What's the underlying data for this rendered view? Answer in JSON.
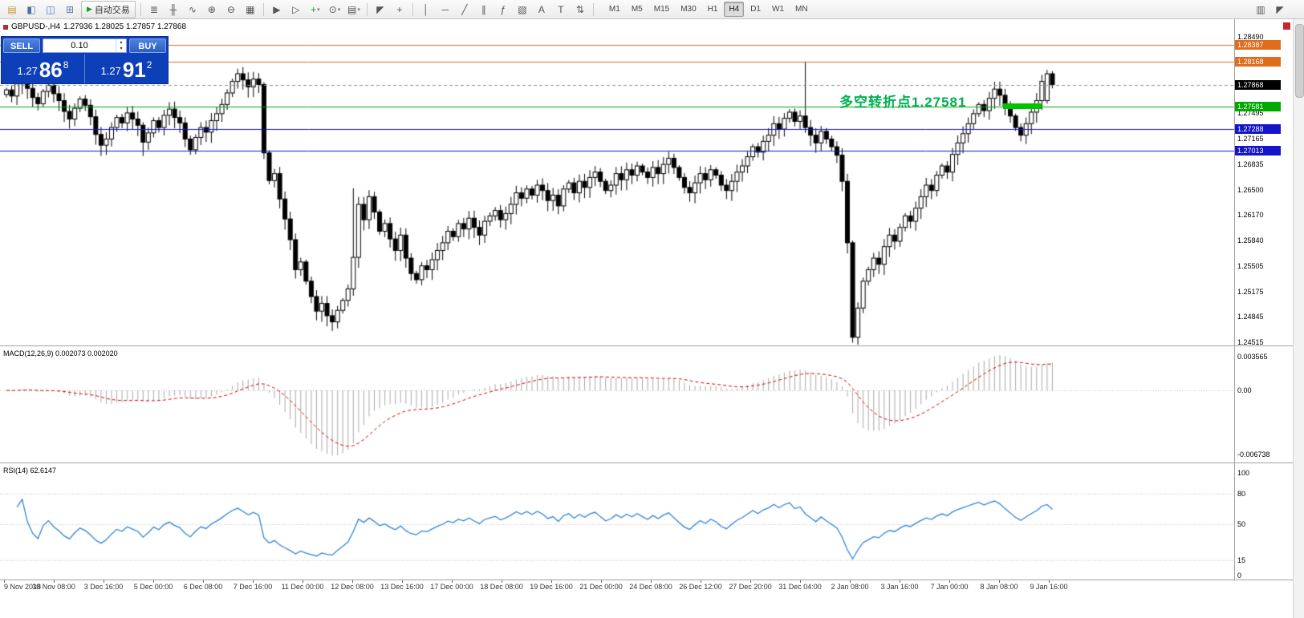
{
  "toolbar": {
    "auto_trading": {
      "label": "自动交易"
    },
    "groups": [
      {
        "items": [
          {
            "name": "new-order-icon",
            "glyph": "▤",
            "color": "#c09a2e"
          },
          {
            "name": "chart-window-icon",
            "glyph": "◧",
            "color": "#4a6fa5"
          },
          {
            "name": "profiles-icon",
            "glyph": "◫",
            "color": "#3b6fd1"
          },
          {
            "name": "data-window-icon",
            "glyph": "⊞",
            "color": "#5a7ab0"
          }
        ]
      },
      {
        "items": [
          {
            "name": "bar-chart-icon",
            "glyph": "≣"
          },
          {
            "name": "candlestick-chart-icon",
            "glyph": "╫"
          },
          {
            "name": "line-chart-icon",
            "glyph": "∿"
          },
          {
            "name": "zoom-in-icon",
            "glyph": "⊕"
          },
          {
            "name": "zoom-out-icon",
            "glyph": "⊖"
          },
          {
            "name": "tile-windows-icon",
            "glyph": "▦"
          }
        ]
      },
      {
        "items": [
          {
            "name": "auto-scroll-icon",
            "glyph": "▶"
          },
          {
            "name": "chart-shift-icon",
            "glyph": "▷"
          },
          {
            "name": "new-chart-icon",
            "glyph": "+",
            "color": "#18a018",
            "dropdown": true
          },
          {
            "name": "period-selector-icon",
            "glyph": "⊙",
            "dropdown": true
          },
          {
            "name": "templates-icon",
            "glyph": "▤",
            "dropdown": true
          }
        ]
      },
      {
        "items": [
          {
            "name": "cursor-icon",
            "glyph": "◤"
          },
          {
            "name": "crosshair-icon",
            "glyph": "+"
          }
        ]
      },
      {
        "items": [
          {
            "name": "vertical-line-icon",
            "glyph": "│"
          },
          {
            "name": "horizontal-line-icon",
            "glyph": "─"
          },
          {
            "name": "trendline-icon",
            "glyph": "╱"
          },
          {
            "name": "channel-icon",
            "glyph": "∥"
          },
          {
            "name": "fibonacci-icon",
            "glyph": "ƒ"
          },
          {
            "name": "shapes-icon",
            "glyph": "▧"
          },
          {
            "name": "text-icon",
            "glyph": "A"
          },
          {
            "name": "label-icon",
            "glyph": "T"
          },
          {
            "name": "arrow-tools-icon",
            "glyph": "⇅"
          }
        ]
      }
    ],
    "timeframes": [
      "M1",
      "M5",
      "M15",
      "M30",
      "H1",
      "H4",
      "D1",
      "W1",
      "MN"
    ],
    "active_timeframe": "H4",
    "right_items": [
      {
        "name": "chart-list-icon",
        "glyph": "▥"
      },
      {
        "name": "pointer-mode-icon",
        "glyph": "◤"
      }
    ]
  },
  "one_click": {
    "sell_label": "SELL",
    "buy_label": "BUY",
    "volume": "0.10",
    "sell_price": {
      "prefix": "1.27",
      "big": "86",
      "sup": "8"
    },
    "buy_price": {
      "prefix": "1.27",
      "big": "91",
      "sup": "2"
    }
  },
  "chart_data": {
    "type": "candlestick",
    "title": "GBPUSD-,H4",
    "ohlc_label": "1.27936 1.28025 1.27857 1.27868",
    "current_price": 1.27868,
    "current_price_text": "1.27868",
    "y_axis": {
      "min": 1.24515,
      "max": 1.2849,
      "ticks": [
        {
          "text": "1.28490",
          "v": 1.2849
        },
        {
          "text": "1.27495",
          "v": 1.27495
        },
        {
          "text": "1.27165",
          "v": 1.27165
        },
        {
          "text": "1.26835",
          "v": 1.26835
        },
        {
          "text": "1.26500",
          "v": 1.265
        },
        {
          "text": "1.26170",
          "v": 1.2617
        },
        {
          "text": "1.25840",
          "v": 1.2584
        },
        {
          "text": "1.25505",
          "v": 1.25505
        },
        {
          "text": "1.25175",
          "v": 1.25175
        },
        {
          "text": "1.24845",
          "v": 1.24845
        },
        {
          "text": "1.24515",
          "v": 1.24515
        }
      ]
    },
    "levels": [
      {
        "text": "1.28387",
        "v": 1.28387,
        "color": "#e06c1e"
      },
      {
        "text": "1.28168",
        "v": 1.28168,
        "color": "#e06c1e"
      },
      {
        "text": "1.27581",
        "v": 1.27581,
        "color": "#00a800"
      },
      {
        "text": "1.27288",
        "v": 1.27288,
        "color": "#1414c8"
      },
      {
        "text": "1.27013",
        "v": 1.27013,
        "color": "#1414c8"
      }
    ],
    "annotation": {
      "text": "多空转折点1.27581",
      "color": "#00b050",
      "anchor_price": 1.27581
    },
    "highlight_box": {
      "price": 1.27581,
      "color": "#00c300"
    },
    "x_labels": [
      "9 Nov 2018",
      "30 Nov 08:00",
      "3 Dec 16:00",
      "5 Dec 00:00",
      "6 Dec 08:00",
      "7 Dec 16:00",
      "11 Dec 00:00",
      "12 Dec 08:00",
      "13 Dec 16:00",
      "17 Dec 00:00",
      "18 Dec 08:00",
      "19 Dec 16:00",
      "21 Dec 00:00",
      "24 Dec 08:00",
      "26 Dec 12:00",
      "27 Dec 20:00",
      "31 Dec 04:00",
      "2 Jan 08:00",
      "3 Jan 16:00",
      "7 Jan 00:00",
      "8 Jan 08:00",
      "9 Jan 16:00"
    ],
    "closes": [
      1.278,
      1.2772,
      1.2788,
      1.2795,
      1.2782,
      1.277,
      1.2762,
      1.2778,
      1.2786,
      1.2775,
      1.2766,
      1.2752,
      1.2742,
      1.2756,
      1.2768,
      1.276,
      1.2745,
      1.2722,
      1.2708,
      1.2716,
      1.2731,
      1.2744,
      1.2737,
      1.275,
      1.2742,
      1.2734,
      1.2712,
      1.2724,
      1.274,
      1.2731,
      1.2747,
      1.2755,
      1.2744,
      1.2737,
      1.2716,
      1.2702,
      1.2718,
      1.2731,
      1.2725,
      1.274,
      1.2749,
      1.2761,
      1.2776,
      1.2791,
      1.2801,
      1.2793,
      1.2784,
      1.2794,
      1.2787,
      1.2698,
      1.2662,
      1.2671,
      1.2638,
      1.2612,
      1.2585,
      1.2546,
      1.2556,
      1.2531,
      1.2511,
      1.2492,
      1.2502,
      1.2486,
      1.2478,
      1.2493,
      1.2506,
      1.2521,
      1.2562,
      1.2631,
      1.2611,
      1.2641,
      1.2621,
      1.2596,
      1.2606,
      1.2586,
      1.2571,
      1.2591,
      1.2561,
      1.2541,
      1.2533,
      1.2551,
      1.2546,
      1.2559,
      1.2571,
      1.2581,
      1.2596,
      1.2589,
      1.2606,
      1.2599,
      1.2613,
      1.2601,
      1.2591,
      1.2609,
      1.2616,
      1.2623,
      1.2611,
      1.2619,
      1.2631,
      1.2646,
      1.2639,
      1.2651,
      1.2643,
      1.2656,
      1.2649,
      1.2636,
      1.2643,
      1.2629,
      1.2651,
      1.2659,
      1.2646,
      1.2661,
      1.2653,
      1.2666,
      1.2673,
      1.2661,
      1.2649,
      1.2656,
      1.2671,
      1.2663,
      1.2676,
      1.2669,
      1.2681,
      1.2673,
      1.2666,
      1.2679,
      1.2671,
      1.2683,
      1.2691,
      1.2679,
      1.2666,
      1.2653,
      1.2646,
      1.2659,
      1.2671,
      1.2663,
      1.2676,
      1.2669,
      1.2656,
      1.2649,
      1.2661,
      1.2673,
      1.2681,
      1.2693,
      1.2706,
      1.2699,
      1.2713,
      1.2721,
      1.2736,
      1.2729,
      1.2743,
      1.2751,
      1.2739,
      1.2746,
      1.2731,
      1.2721,
      1.2711,
      1.2726,
      1.2716,
      1.2706,
      1.2695,
      1.2661,
      1.2581,
      1.2458,
      1.2496,
      1.2531,
      1.2546,
      1.2561,
      1.2553,
      1.2576,
      1.2591,
      1.2583,
      1.2601,
      1.2616,
      1.2609,
      1.2626,
      1.2641,
      1.2656,
      1.2649,
      1.2669,
      1.2681,
      1.2673,
      1.2696,
      1.2711,
      1.2723,
      1.2736,
      1.2749,
      1.2761,
      1.2753,
      1.2769,
      1.2781,
      1.2773,
      1.2759,
      1.2746,
      1.2731,
      1.2721,
      1.2736,
      1.2751,
      1.2766,
      1.2791,
      1.2801,
      1.27868
    ],
    "overrides": {
      "26": [
        1.2734,
        1.2738,
        1.2694,
        1.2712
      ],
      "49": [
        1.2787,
        1.279,
        1.269,
        1.2698
      ],
      "66": [
        1.2521,
        1.2652,
        1.2512,
        1.2562
      ],
      "152": [
        1.2746,
        1.2817,
        1.2724,
        1.2731
      ],
      "161": [
        1.2581,
        1.2584,
        1.2451,
        1.2458
      ],
      "198": [
        1.2766,
        1.2806,
        1.2762,
        1.2801
      ]
    },
    "macd": {
      "label": "MACD(12,26,9) 0.002073 0.002020",
      "params": [
        12,
        26,
        9
      ],
      "values": [
        0.002073,
        0.00202
      ],
      "ticks": [
        {
          "text": "0.003565",
          "v": 0.003565
        },
        {
          "text": "0.00",
          "v": 0
        },
        {
          "text": "-0.006738",
          "v": -0.006738
        }
      ]
    },
    "rsi": {
      "label": "RSI(14) 62.6147",
      "period": 14,
      "value": 62.6147,
      "ticks": [
        {
          "text": "100",
          "v": 100
        },
        {
          "text": "80",
          "v": 80
        },
        {
          "text": "50",
          "v": 50
        },
        {
          "text": "15",
          "v": 15
        },
        {
          "text": "0",
          "v": 0
        }
      ],
      "levels": [
        80,
        50,
        15
      ]
    }
  }
}
